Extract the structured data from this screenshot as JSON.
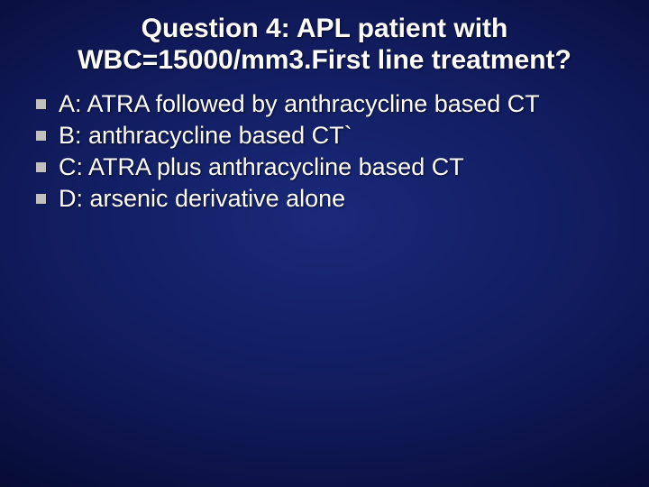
{
  "slide": {
    "background_gradient": {
      "type": "radial",
      "center_color": "#1a2a7a",
      "mid_color": "#101a5a",
      "edge_color": "#020418"
    },
    "title": {
      "text": "Question 4: APL patient with WBC=15000/mm3.First line treatment?",
      "font_size": 30,
      "font_weight": "bold",
      "color": "#ffffff",
      "align": "center"
    },
    "bullets": {
      "marker_color": "#c0c0c0",
      "marker_size": 11,
      "text_color": "#ffffff",
      "font_size": 27,
      "items": [
        "A: ATRA followed by anthracycline based CT",
        "B: anthracycline based CT`",
        "C: ATRA plus anthracycline based CT",
        "D: arsenic derivative alone"
      ]
    }
  }
}
